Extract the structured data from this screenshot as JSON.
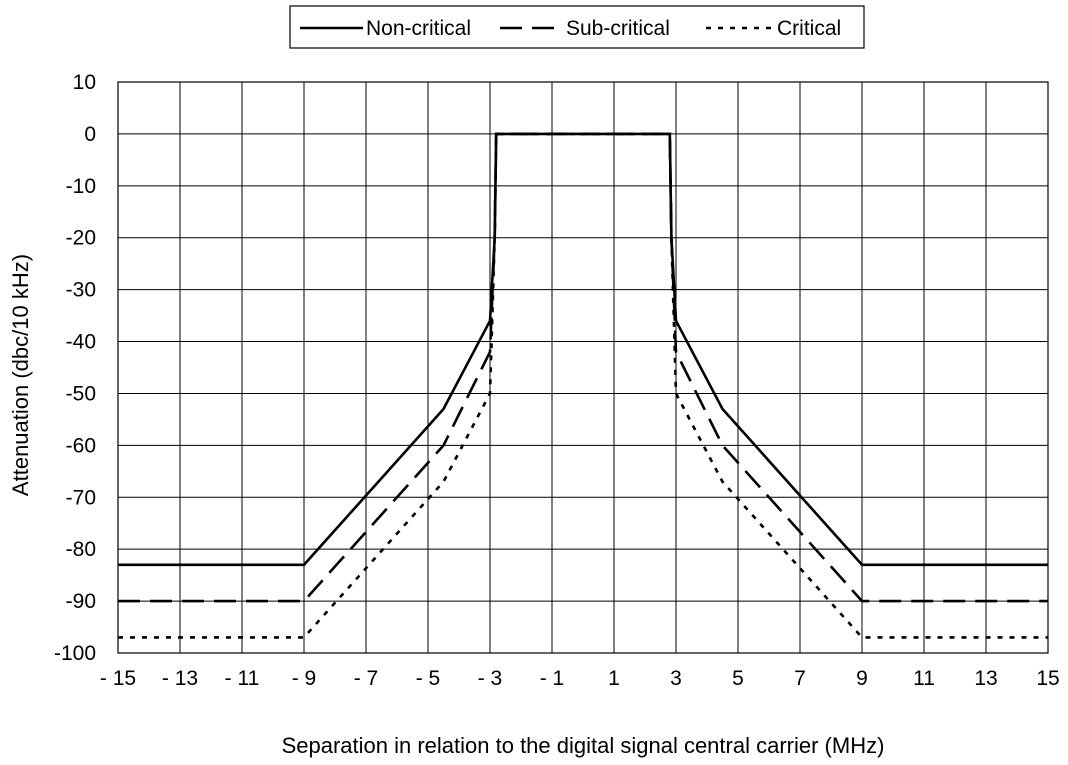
{
  "chart_data": {
    "type": "line",
    "title": "",
    "xlabel": "Separation in relation to the digital signal central carrier (MHz)",
    "ylabel": "Attenuation (dbc/10 kHz)",
    "xlim": [
      -15,
      15
    ],
    "ylim": [
      -100,
      10
    ],
    "x_ticks": [
      -15,
      -13,
      -11,
      -9,
      -7,
      -5,
      -3,
      -1,
      1,
      3,
      5,
      7,
      9,
      11,
      13,
      15
    ],
    "x_tick_labels": [
      "- 15",
      "- 13",
      "- 11",
      "- 9",
      "- 7",
      "- 5",
      "- 3",
      "- 1",
      "1",
      "3",
      "5",
      "7",
      "9",
      "11",
      "13",
      "15"
    ],
    "y_ticks": [
      10,
      0,
      -10,
      -20,
      -30,
      -40,
      -50,
      -60,
      -70,
      -80,
      -90,
      -100
    ],
    "y_tick_labels": [
      "10",
      "0",
      "-10",
      "-20",
      "-30",
      "-40",
      "-50",
      "-60",
      "-70",
      "-80",
      "-90",
      "-100"
    ],
    "grid": true,
    "legend_position": "top",
    "series": [
      {
        "name": "Non-critical",
        "style": "solid",
        "color": "#000000",
        "x": [
          -15,
          -9,
          -4.5,
          -3,
          -2.85,
          -2.8,
          2.8,
          2.85,
          3,
          4.5,
          9,
          15
        ],
        "y": [
          -83,
          -83,
          -53,
          -36,
          -20,
          0,
          0,
          -20,
          -36,
          -53,
          -83,
          -83
        ]
      },
      {
        "name": "Sub-critical",
        "style": "dashed",
        "color": "#000000",
        "x": [
          -15,
          -9,
          -4.5,
          -3,
          -2.85,
          -2.8,
          2.8,
          2.85,
          3,
          4.5,
          9,
          15
        ],
        "y": [
          -90,
          -90,
          -60,
          -42,
          -20,
          0,
          0,
          -20,
          -42,
          -60,
          -90,
          -90
        ]
      },
      {
        "name": "Critical",
        "style": "dotted",
        "color": "#000000",
        "x": [
          -15,
          -9,
          -4.5,
          -3,
          -2.85,
          -2.8,
          2.8,
          2.85,
          3,
          4.5,
          9,
          15
        ],
        "y": [
          -97,
          -97,
          -67,
          -50,
          -20,
          0,
          0,
          -20,
          -50,
          -67,
          -97,
          -97
        ]
      }
    ]
  }
}
